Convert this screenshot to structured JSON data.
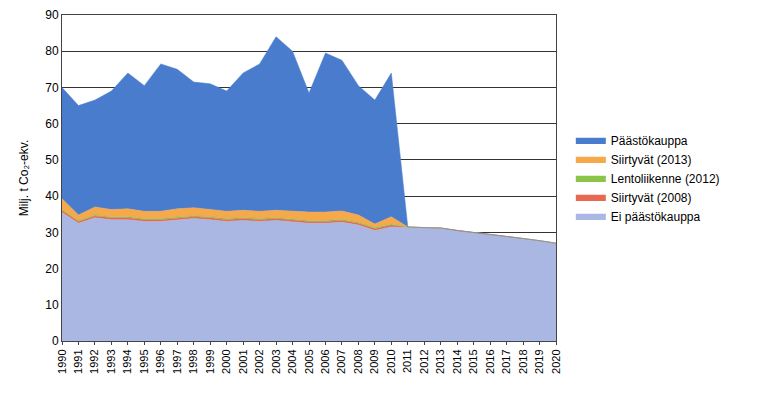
{
  "chart_data": {
    "type": "area",
    "stacked": true,
    "y_label": "Milj. t Co₂-ekv.",
    "x": [
      1990,
      1991,
      1992,
      1993,
      1994,
      1995,
      1996,
      1997,
      1998,
      1999,
      2000,
      2001,
      2002,
      2003,
      2004,
      2005,
      2006,
      2007,
      2008,
      2009,
      2010,
      2011,
      2012,
      2013,
      2014,
      2015,
      2016,
      2017,
      2018,
      2019,
      2020
    ],
    "xlim": [
      1990,
      2020
    ],
    "xticks": [
      1990,
      1991,
      1992,
      1993,
      1994,
      1995,
      1996,
      1997,
      1998,
      1999,
      2000,
      2001,
      2002,
      2003,
      2004,
      2005,
      2006,
      2007,
      2008,
      2009,
      2010,
      2011,
      2012,
      2013,
      2014,
      2015,
      2016,
      2017,
      2018,
      2019,
      2020
    ],
    "ylim": [
      0,
      90
    ],
    "yticks": [
      0,
      10,
      20,
      30,
      40,
      50,
      60,
      70,
      80,
      90
    ],
    "grid": true,
    "legend": "right",
    "series": [
      {
        "name": "Ei päästökauppa",
        "color": "#aab7e3",
        "values": [
          35.5,
          32.5,
          34,
          33.5,
          33.5,
          33,
          33,
          33.5,
          33.8,
          33.5,
          33,
          33.3,
          33,
          33.3,
          33,
          32.5,
          32.5,
          32.8,
          32,
          30.5,
          31.5,
          31.5,
          31.3,
          31.2,
          30.5,
          30,
          29.5,
          29,
          28.3,
          27.7,
          27
        ]
      },
      {
        "name": "Siirtyvät (2008)",
        "color": "#e8694f",
        "values": [
          0.5,
          0.5,
          0.5,
          0.5,
          0.5,
          0.5,
          0.5,
          0.5,
          0.5,
          0.5,
          0.5,
          0.5,
          0.5,
          0.5,
          0.5,
          0.5,
          0.5,
          0.5,
          0.5,
          0.5,
          0.5,
          0,
          null,
          null,
          null,
          null,
          null,
          null,
          null,
          null,
          null
        ]
      },
      {
        "name": "Lentoliikenne (2012)",
        "color": "#8cc44a",
        "values": [
          0.3,
          0.3,
          0.3,
          0.3,
          0.3,
          0.3,
          0.3,
          0.3,
          0.3,
          0.3,
          0.3,
          0.3,
          0.3,
          0.3,
          0.3,
          0.3,
          0.3,
          0.3,
          0.3,
          0.3,
          0.3,
          0,
          null,
          null,
          null,
          null,
          null,
          null,
          null,
          null,
          null
        ]
      },
      {
        "name": "Siirtyvät (2013)",
        "color": "#f5a94a",
        "values": [
          3,
          1.5,
          2.2,
          2,
          2.2,
          2,
          2,
          2.2,
          2.2,
          2,
          2,
          2,
          2,
          2,
          2,
          2.3,
          2.3,
          2.3,
          2,
          1,
          2,
          0,
          null,
          null,
          null,
          null,
          null,
          null,
          null,
          null,
          null
        ]
      },
      {
        "name": "Päästökauppa",
        "color": "#4a7ccd",
        "values": [
          30.7,
          30.2,
          29.5,
          32.7,
          37.5,
          34.7,
          40.7,
          38.5,
          34.7,
          34.7,
          33.2,
          37.9,
          40.7,
          47.9,
          44.2,
          32.9,
          43.9,
          41.6,
          35.7,
          34.2,
          39.7,
          0,
          null,
          null,
          null,
          null,
          null,
          null,
          null,
          null,
          null
        ]
      }
    ]
  }
}
